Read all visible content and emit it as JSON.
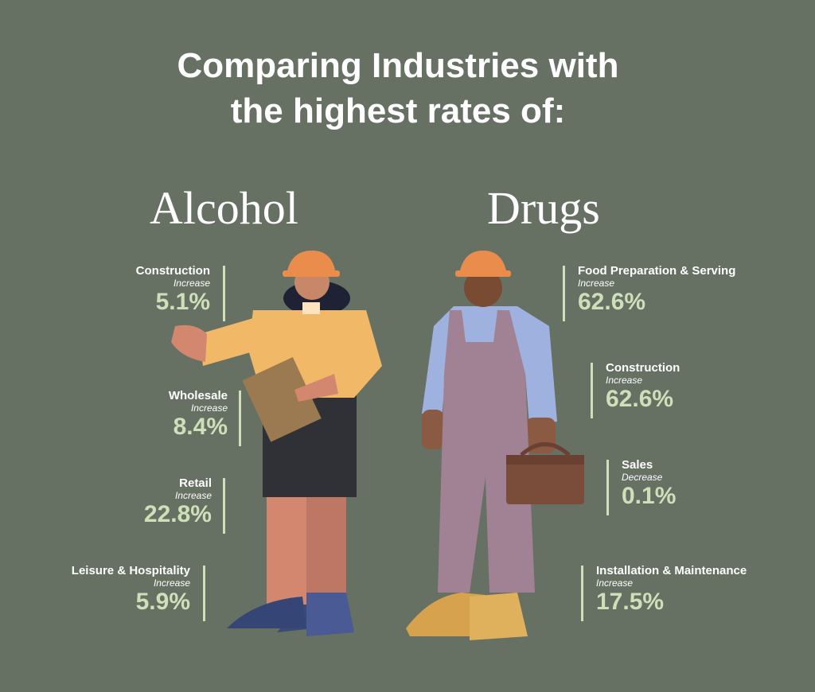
{
  "title": [
    "Comparing Industries with",
    "the highest rates of:"
  ],
  "alcohol": {
    "heading": "Alcohol",
    "items": [
      {
        "industry": "Construction",
        "change": "Increase",
        "rate": "5.1%"
      },
      {
        "industry": "Wholesale",
        "change": "Increase",
        "rate": "8.4%"
      },
      {
        "industry": "Retail",
        "change": "Increase",
        "rate": "22.8%"
      },
      {
        "industry": "Leisure & Hospitality",
        "change": "Increase",
        "rate": "5.9%"
      }
    ]
  },
  "drugs": {
    "heading": "Drugs",
    "items": [
      {
        "industry": "Food Preparation & Serving",
        "change": "Increase",
        "rate": "62.6%"
      },
      {
        "industry": "Construction",
        "change": "Increase",
        "rate": "62.6%"
      },
      {
        "industry": "Sales",
        "change": "Decrease",
        "rate": "0.1%"
      },
      {
        "industry": "Installation & Maintenance",
        "change": "Increase",
        "rate": "17.5%"
      }
    ]
  }
}
